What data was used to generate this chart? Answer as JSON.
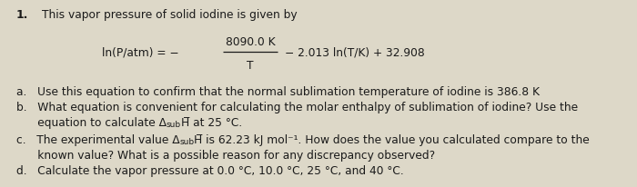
{
  "background_color": "#ddd8c8",
  "text_color": "#1a1a1a",
  "title_number": "1.",
  "title_text": "This vapor pressure of solid iodine is given by",
  "eq_lhs": "ln(P/atm) = −",
  "eq_numerator": "8090.0 K",
  "eq_denominator": "T",
  "eq_rhs": "− 2.013 ln(T/K) + 32.908",
  "item_a": "a.   Use this equation to confirm that the normal sublimation temperature of iodine is 386.8 K",
  "item_b1": "b.   What equation is convenient for calculating the molar enthalpy of sublimation of iodine? Use the",
  "item_b2_pre": "      equation to calculate Δ",
  "item_b2_sub": "sub",
  "item_b2_post": "H̅ at 25 °C.",
  "item_c1_pre": "c.   The experimental value Δ",
  "item_c1_sub": "sub",
  "item_c1_post": "H̅ is 62.23 kJ mol⁻¹. How does the value you calculated compare to the",
  "item_c2": "      known value? What is a possible reason for any discrepancy observed?",
  "item_d": "d.   Calculate the vapor pressure at 0.0 °C, 10.0 °C, 25 °C, and 40 °C.",
  "main_fontsize": 8.8,
  "sub_fontsize": 6.5
}
